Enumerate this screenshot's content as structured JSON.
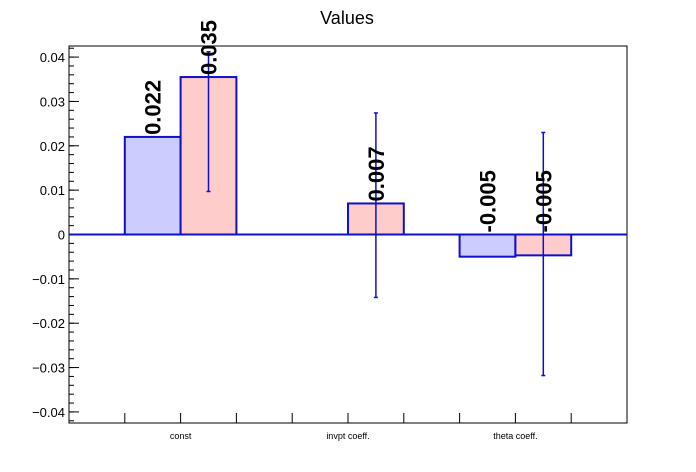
{
  "chart_data": {
    "type": "bar",
    "title": "Values",
    "xlabel": "",
    "ylabel": "",
    "ylim": [
      -0.0425,
      0.0425
    ],
    "yticks": [
      -0.04,
      -0.03,
      -0.02,
      -0.01,
      0,
      0.01,
      0.02,
      0.03,
      0.04
    ],
    "ytick_labels": [
      "−0.04",
      "−0.03",
      "−0.02",
      "−0.01",
      "0",
      "0.01",
      "0.02",
      "0.03",
      "0.04"
    ],
    "categories": [
      "const",
      "invpt coeff.",
      "theta coeff."
    ],
    "grid": false,
    "legend": "none",
    "series": [
      {
        "color": "#ccccff",
        "values": [
          0.022,
          null,
          -0.005
        ],
        "labels": [
          "0.022",
          "",
          "-0.005"
        ],
        "errors": [
          null,
          null,
          null
        ]
      },
      {
        "color": "#ffcccc",
        "values": [
          0.0355,
          0.007,
          -0.0047
        ],
        "labels": [
          "0.035",
          "0.007",
          "-0.005"
        ],
        "errors": [
          [
            0.0097,
            0.0412
          ],
          [
            -0.0142,
            0.0274
          ],
          [
            -0.0318,
            0.023
          ]
        ]
      }
    ],
    "edge_color": "#1010c8"
  }
}
